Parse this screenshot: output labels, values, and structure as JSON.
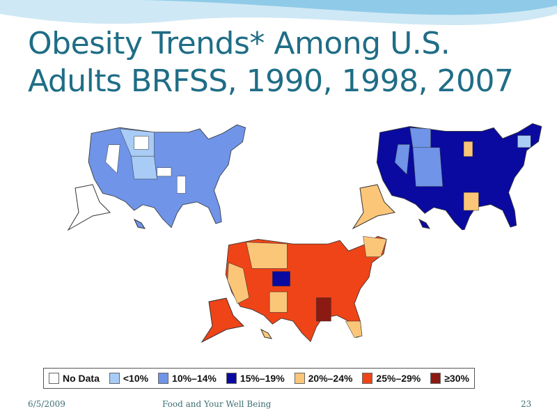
{
  "title": {
    "line1": "Obesity Trends* Among U.S.",
    "line2": "Adults BRFSS, 1990, 1998, 2007"
  },
  "maps": [
    {
      "year": "1990",
      "dominant": "#6f94e8"
    },
    {
      "year": "1998",
      "dominant": "#0a0aa0"
    },
    {
      "year": "2007",
      "dominant": "#ee4418"
    }
  ],
  "legend": [
    {
      "label": "No Data",
      "color": "#ffffff"
    },
    {
      "label": "<10%",
      "color": "#a8ccf5"
    },
    {
      "label": "10%–14%",
      "color": "#6f94e8"
    },
    {
      "label": "15%–19%",
      "color": "#0a0aa0"
    },
    {
      "label": "20%–24%",
      "color": "#fcc679"
    },
    {
      "label": "25%–29%",
      "color": "#ee4418"
    },
    {
      "label": "≥30%",
      "color": "#8b1a12"
    }
  ],
  "footer": {
    "date": "6/5/2009",
    "center": "Food and Your Well Being",
    "page": "23"
  }
}
